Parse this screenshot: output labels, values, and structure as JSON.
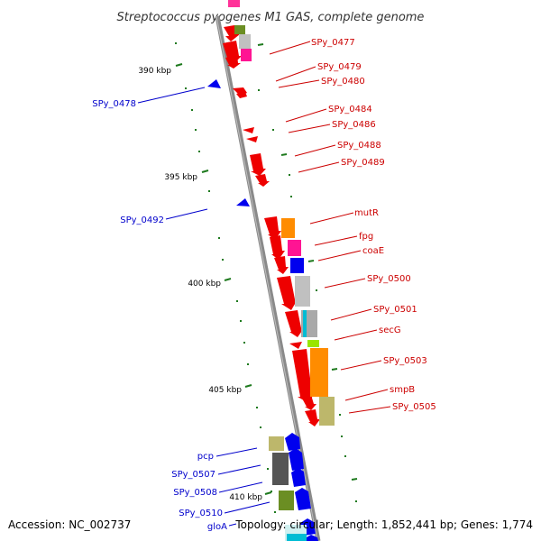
{
  "title": "Streptococcus pyogenes M1 GAS, complete genome",
  "footer": {
    "accession": "Accession: NC_002737",
    "summary": "Topology: circular; Length: 1,852,441 bp; Genes: 1,774"
  },
  "colors": {
    "forward": "#ff0000",
    "reverse": "#0000ff",
    "label_forward": "#cc0000",
    "label_reverse": "#0000cc",
    "backbone": "#888888",
    "gc_marks": "#1e7a1e"
  },
  "ticks": [
    "390 kbp",
    "395 kbp",
    "400 kbp",
    "405 kbp",
    "410 kbp"
  ],
  "labels_forward": [
    "SPy_0477",
    "SPy_0479",
    "SPy_0480",
    "SPy_0484",
    "SPy_0486",
    "SPy_0488",
    "SPy_0489",
    "mutR",
    "fpg",
    "coaE",
    "SPy_0500",
    "SPy_0501",
    "secG",
    "SPy_0503",
    "smpB",
    "SPy_0505"
  ],
  "labels_reverse": [
    "SPy_0478",
    "SPy_0492",
    "pcp",
    "SPy_0507",
    "SPy_0508",
    "SPy_0510",
    "gloA"
  ]
}
